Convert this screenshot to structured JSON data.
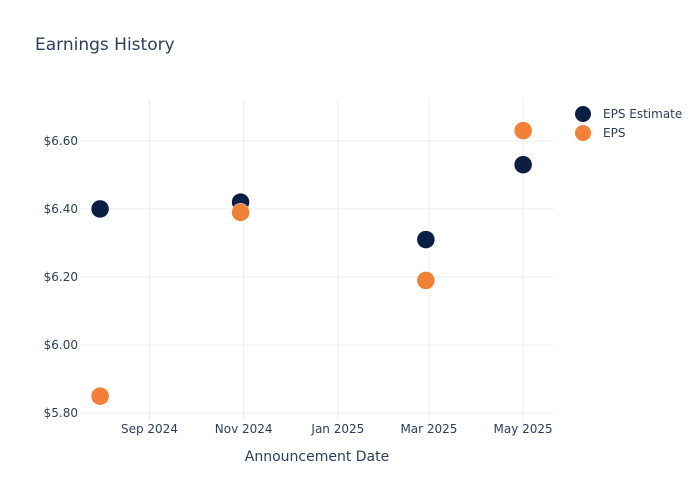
{
  "chart_data": {
    "type": "scatter",
    "title": "Earnings History",
    "xlabel": "Announcement Date",
    "ylabel": "",
    "x_ticks": [
      "Sep 2024",
      "Nov 2024",
      "Jan 2025",
      "Mar 2025",
      "May 2025"
    ],
    "y_ticks": [
      "$5.80",
      "$6.00",
      "$6.20",
      "$6.40",
      "$6.60"
    ],
    "ylim": [
      5.78,
      6.72
    ],
    "xlim": [
      "2024-07-18",
      "2025-05-21"
    ],
    "grid": true,
    "legend_position": "right",
    "series": [
      {
        "name": "EPS Estimate",
        "color": "#0b1f45",
        "points": [
          {
            "x": "2024-07-31",
            "y": 6.4
          },
          {
            "x": "2024-10-30",
            "y": 6.42
          },
          {
            "x": "2025-02-27",
            "y": 6.31
          },
          {
            "x": "2025-05-01",
            "y": 6.53
          }
        ]
      },
      {
        "name": "EPS",
        "color": "#f47f36",
        "points": [
          {
            "x": "2024-07-31",
            "y": 5.85
          },
          {
            "x": "2024-10-30",
            "y": 6.39
          },
          {
            "x": "2025-02-27",
            "y": 6.19
          },
          {
            "x": "2025-05-01",
            "y": 6.63
          }
        ]
      }
    ]
  }
}
